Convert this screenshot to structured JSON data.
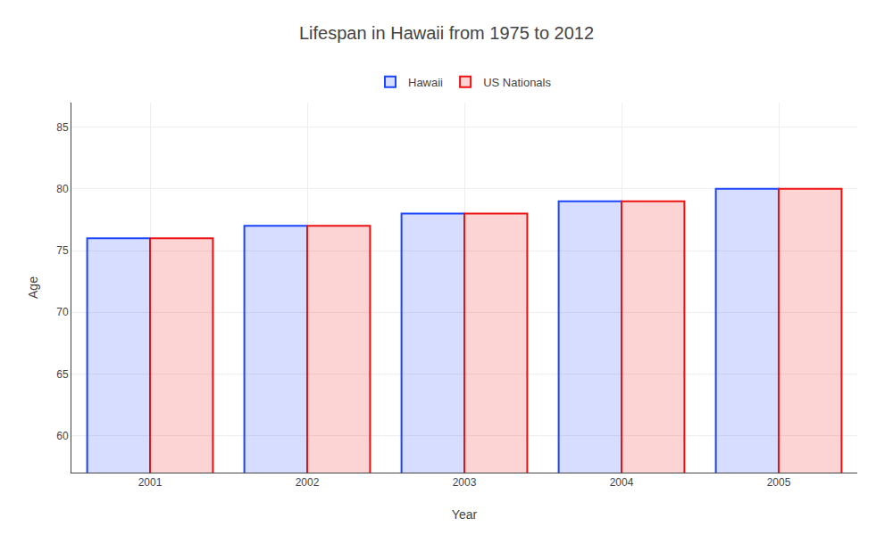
{
  "chart_data": {
    "type": "bar",
    "title": "Lifespan in Hawaii from 1975 to 2012",
    "x_label": "Year",
    "y_label": "Age",
    "categories": [
      "2001",
      "2002",
      "2003",
      "2004",
      "2005"
    ],
    "series": [
      {
        "name": "Hawaii",
        "color": "#1a44ff",
        "values": [
          76,
          77,
          78,
          79,
          80
        ]
      },
      {
        "name": "US Nationals",
        "color": "#ee1111",
        "values": [
          76,
          77,
          78,
          79,
          80
        ]
      }
    ],
    "ylim": [
      57,
      87
    ],
    "yticks": [
      60,
      65,
      70,
      75,
      80,
      85
    ],
    "grid": true,
    "legend": "top"
  }
}
